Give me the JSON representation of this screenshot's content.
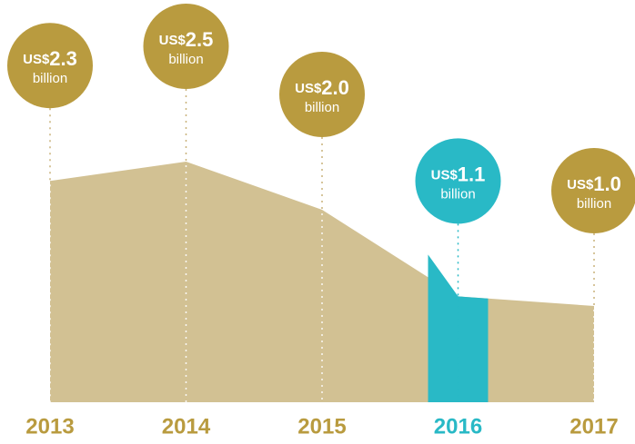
{
  "chart_data": {
    "type": "area",
    "categories": [
      "2013",
      "2014",
      "2015",
      "2016",
      "2017"
    ],
    "values": [
      2.3,
      2.5,
      2.0,
      1.1,
      1.0
    ],
    "value_labels": [
      "2.3",
      "2.5",
      "2.0",
      "1.1",
      "1.0"
    ],
    "currency": "US$",
    "unit": "billion",
    "color": "#d2c193",
    "bubble_color": "#b99b3f",
    "highlight_color": "#29b9c6",
    "highlight_index": 3
  }
}
